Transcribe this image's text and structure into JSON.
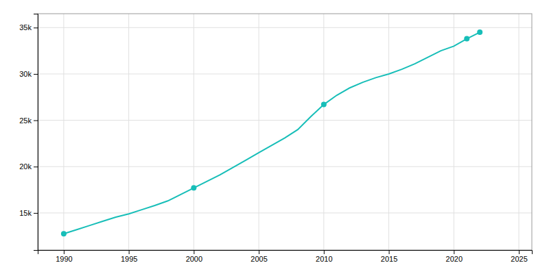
{
  "chart_data": {
    "type": "line",
    "x": [
      1990,
      1991,
      1992,
      1993,
      1994,
      1995,
      1996,
      1997,
      1998,
      1999,
      2000,
      2001,
      2002,
      2003,
      2004,
      2005,
      2006,
      2007,
      2008,
      2009,
      2010,
      2011,
      2012,
      2013,
      2014,
      2015,
      2016,
      2017,
      2018,
      2019,
      2020,
      2021,
      2022
    ],
    "series": [
      {
        "color": "#17BEB8",
        "values": [
          12750,
          13200,
          13650,
          14100,
          14550,
          14900,
          15350,
          15800,
          16300,
          17000,
          17700,
          18400,
          19100,
          19900,
          20700,
          21500,
          22300,
          23100,
          24000,
          25400,
          26700,
          27700,
          28500,
          29100,
          29600,
          30000,
          30500,
          31100,
          31800,
          32500,
          33000,
          33800,
          34500
        ]
      },
      {
        "type": "scatter",
        "marker": "circle",
        "color": "#17BEB8",
        "x": [
          1990,
          2000,
          2010,
          2021,
          2022
        ],
        "values": [
          12750,
          17700,
          26700,
          33800,
          34500
        ]
      }
    ],
    "xlim": [
      1988,
      2026
    ],
    "ylim": [
      11000,
      36500
    ],
    "xticks": [
      1990,
      1995,
      2000,
      2005,
      2010,
      2015,
      2020,
      2025
    ],
    "yticks": [
      {
        "value": 15000,
        "label": "15k"
      },
      {
        "value": 20000,
        "label": "20k"
      },
      {
        "value": 25000,
        "label": "25k"
      },
      {
        "value": 30000,
        "label": "30k"
      },
      {
        "value": 35000,
        "label": "35k"
      }
    ],
    "grid": true
  }
}
